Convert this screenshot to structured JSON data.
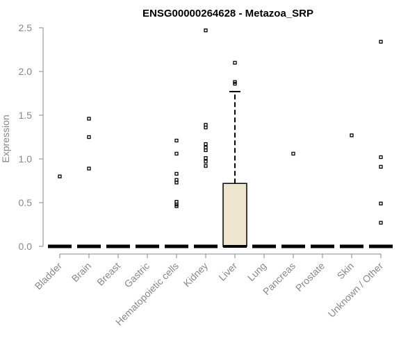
{
  "chart_data": {
    "type": "boxplot",
    "title": "ENSG00000264628 - Metazoa_SRP",
    "xlabel": "",
    "ylabel": "Expression",
    "ylim": [
      0,
      2.5
    ],
    "yticks": [
      "0.0",
      "0.5",
      "1.0",
      "1.5",
      "2.0",
      "2.5"
    ],
    "grid": false,
    "colors": {
      "box_fill": "#ede5cd",
      "outline": "#000000",
      "axis": "#888888",
      "tick_text": "#888888"
    },
    "categories": [
      "Bladder",
      "Brain",
      "Breast",
      "Gastric",
      "Hematopoietic cells",
      "Kidney",
      "Liver",
      "Lung",
      "Pancreas",
      "Prostate",
      "Skin",
      "Unknown / Other"
    ],
    "boxes": [
      {
        "category": "Bladder",
        "q1": 0,
        "median": 0,
        "q3": 0,
        "whisker_low": 0,
        "whisker_high": 0,
        "outliers": [
          0.8
        ]
      },
      {
        "category": "Brain",
        "q1": 0,
        "median": 0,
        "q3": 0,
        "whisker_low": 0,
        "whisker_high": 0,
        "outliers": [
          1.46,
          1.25,
          0.89
        ]
      },
      {
        "category": "Breast",
        "q1": 0,
        "median": 0,
        "q3": 0,
        "whisker_low": 0,
        "whisker_high": 0,
        "outliers": []
      },
      {
        "category": "Gastric",
        "q1": 0,
        "median": 0,
        "q3": 0,
        "whisker_low": 0,
        "whisker_high": 0,
        "outliers": []
      },
      {
        "category": "Hematopoietic cells",
        "q1": 0,
        "median": 0,
        "q3": 0,
        "whisker_low": 0,
        "whisker_high": 0,
        "outliers": [
          1.21,
          1.06,
          0.83,
          0.76,
          0.73,
          0.51,
          0.48,
          0.46
        ]
      },
      {
        "category": "Kidney",
        "q1": 0,
        "median": 0,
        "q3": 0,
        "whisker_low": 0,
        "whisker_high": 0,
        "outliers": [
          2.47,
          1.39,
          1.36,
          1.17,
          1.13,
          1.1,
          1.01,
          0.97,
          0.92
        ]
      },
      {
        "category": "Liver",
        "q1": 0,
        "median": 0,
        "q3": 0.72,
        "whisker_low": 0,
        "whisker_high": 1.77,
        "outliers": [
          2.1,
          1.88,
          1.86
        ]
      },
      {
        "category": "Lung",
        "q1": 0,
        "median": 0,
        "q3": 0,
        "whisker_low": 0,
        "whisker_high": 0,
        "outliers": []
      },
      {
        "category": "Pancreas",
        "q1": 0,
        "median": 0,
        "q3": 0,
        "whisker_low": 0,
        "whisker_high": 0,
        "outliers": [
          1.06
        ]
      },
      {
        "category": "Prostate",
        "q1": 0,
        "median": 0,
        "q3": 0,
        "whisker_low": 0,
        "whisker_high": 0,
        "outliers": []
      },
      {
        "category": "Skin",
        "q1": 0,
        "median": 0,
        "q3": 0,
        "whisker_low": 0,
        "whisker_high": 0,
        "outliers": [
          1.27
        ]
      },
      {
        "category": "Unknown / Other",
        "q1": 0,
        "median": 0,
        "q3": 0,
        "whisker_low": 0,
        "whisker_high": 0,
        "outliers": [
          2.34,
          1.02,
          0.91,
          0.49,
          0.27
        ]
      }
    ]
  }
}
